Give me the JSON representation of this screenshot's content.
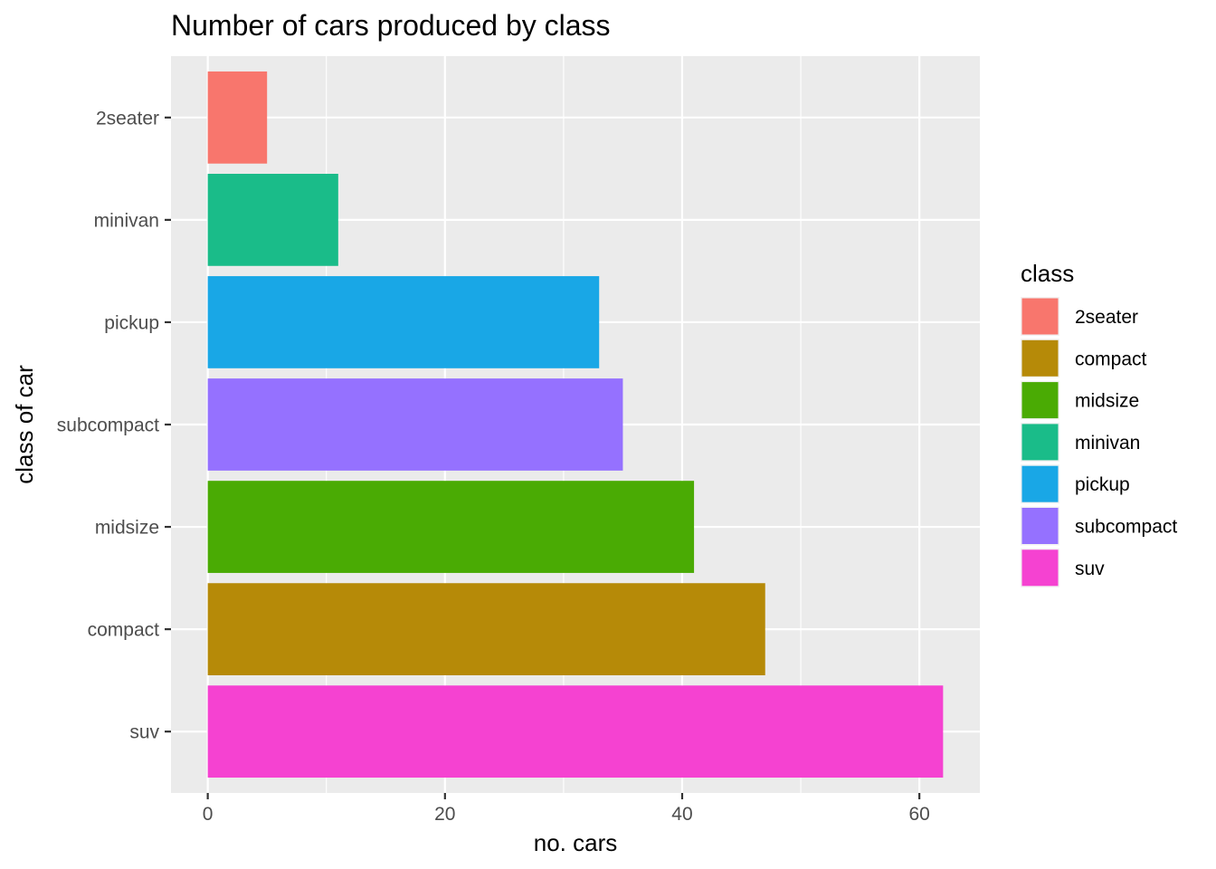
{
  "chart_data": {
    "type": "bar",
    "orientation": "horizontal",
    "title": "Number of cars produced by class",
    "xlabel": "no. cars",
    "ylabel": "class of car",
    "categories": [
      "2seater",
      "minivan",
      "pickup",
      "subcompact",
      "midsize",
      "compact",
      "suv"
    ],
    "values": [
      5,
      11,
      33,
      35,
      41,
      47,
      62
    ],
    "bar_colors": [
      "#F8766D",
      "#1ABC89",
      "#19A7E6",
      "#9571FF",
      "#4AAB04",
      "#B68A08",
      "#F542D1"
    ],
    "xlim": [
      -3.1,
      65.1
    ],
    "xticks": [
      0,
      20,
      40,
      60
    ],
    "grid": true,
    "legend": {
      "title": "class",
      "position": "right",
      "entries": [
        {
          "label": "2seater",
          "color": "#F8766D"
        },
        {
          "label": "compact",
          "color": "#B68A08"
        },
        {
          "label": "midsize",
          "color": "#4AAB04"
        },
        {
          "label": "minivan",
          "color": "#1ABC89"
        },
        {
          "label": "pickup",
          "color": "#19A7E6"
        },
        {
          "label": "subcompact",
          "color": "#9571FF"
        },
        {
          "label": "suv",
          "color": "#F542D1"
        }
      ]
    }
  }
}
